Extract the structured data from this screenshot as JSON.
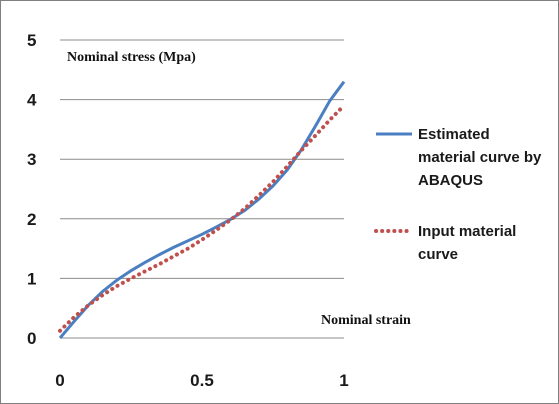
{
  "chart_data": {
    "type": "line",
    "ylabel": "Nominal stress (Mpa)",
    "xlabel": "Nominal strain",
    "xlim": [
      0,
      1
    ],
    "ylim": [
      0,
      5
    ],
    "x_ticks": [
      "0",
      "0.5",
      "1"
    ],
    "y_ticks": [
      "0",
      "1",
      "2",
      "3",
      "4",
      "5"
    ],
    "grid": "horizontal",
    "legend_position": "right",
    "series": [
      {
        "name_lines": [
          "Estimated",
          "material curve by",
          "ABAQUS"
        ],
        "style": "solid",
        "color": "#4a7fc1",
        "x": [
          0,
          0.05,
          0.1,
          0.15,
          0.2,
          0.25,
          0.3,
          0.35,
          0.4,
          0.45,
          0.5,
          0.55,
          0.6,
          0.65,
          0.7,
          0.75,
          0.8,
          0.85,
          0.9,
          0.95,
          1.0
        ],
        "y": [
          0.0,
          0.28,
          0.55,
          0.78,
          0.97,
          1.13,
          1.27,
          1.4,
          1.52,
          1.63,
          1.74,
          1.86,
          1.99,
          2.14,
          2.33,
          2.55,
          2.82,
          3.16,
          3.56,
          3.98,
          4.3
        ]
      },
      {
        "name_lines": [
          "Input material",
          "curve"
        ],
        "style": "dotted",
        "color": "#c0504d",
        "x": [
          0,
          0.05,
          0.1,
          0.15,
          0.2,
          0.25,
          0.3,
          0.35,
          0.4,
          0.45,
          0.5,
          0.55,
          0.6,
          0.65,
          0.7,
          0.75,
          0.8,
          0.85,
          0.9,
          0.95,
          1.0
        ],
        "y": [
          0.12,
          0.35,
          0.55,
          0.72,
          0.87,
          1.0,
          1.12,
          1.24,
          1.37,
          1.5,
          1.65,
          1.81,
          1.98,
          2.17,
          2.39,
          2.62,
          2.88,
          3.15,
          3.4,
          3.66,
          3.9
        ]
      }
    ]
  }
}
